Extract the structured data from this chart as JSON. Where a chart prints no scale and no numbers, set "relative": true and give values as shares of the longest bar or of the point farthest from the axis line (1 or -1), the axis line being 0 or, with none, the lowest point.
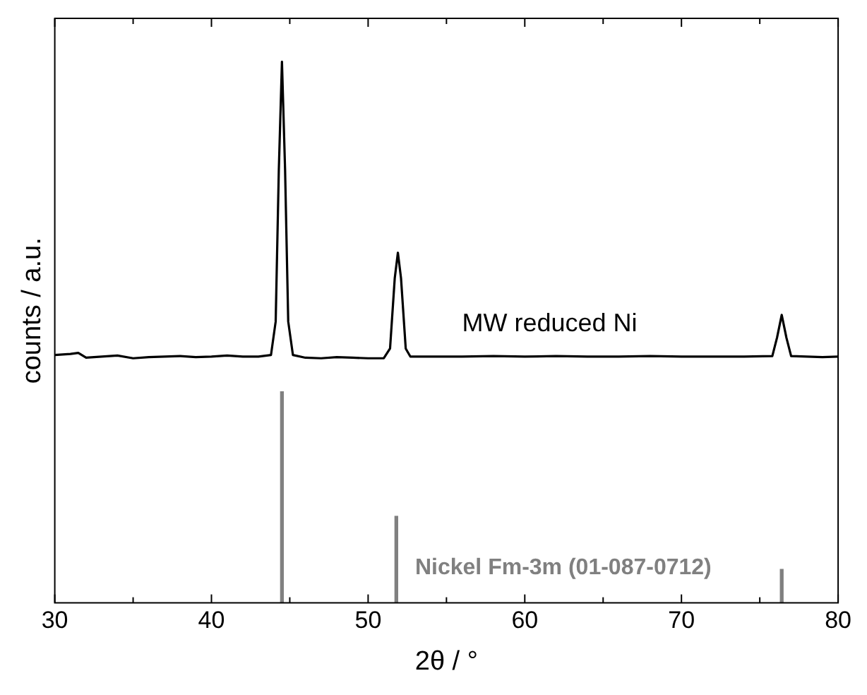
{
  "chart_data": {
    "type": "line",
    "xlabel": "2θ / °",
    "ylabel": "counts / a.u.",
    "relative": true,
    "xlim": [
      30,
      80
    ],
    "xticks": [
      30,
      {
        "value": 35,
        "label": null
      },
      40,
      {
        "value": 45,
        "label": null
      },
      50,
      {
        "value": 55,
        "label": null
      },
      60,
      {
        "value": 65,
        "label": null
      },
      70,
      {
        "value": 75,
        "label": null
      },
      80
    ],
    "grid": false,
    "legend": false,
    "marker": "none",
    "line_style": "solid",
    "series": [
      {
        "name": "MW reduced Ni",
        "color": "#000000",
        "x": [
          30,
          31,
          31.5,
          32,
          33,
          34,
          35,
          36,
          37,
          38,
          39,
          40,
          41,
          42,
          43,
          43.8,
          44.1,
          44.3,
          44.5,
          44.7,
          44.9,
          45.2,
          46,
          47,
          48,
          49,
          50,
          51,
          51.4,
          51.7,
          51.9,
          52.1,
          52.4,
          52.7,
          54,
          56,
          58,
          60,
          62,
          64,
          66,
          68,
          70,
          72,
          74,
          75.8,
          76.1,
          76.4,
          76.7,
          77,
          78,
          79,
          80
        ],
        "values": [
          0.458,
          0.46,
          0.462,
          0.453,
          0.455,
          0.457,
          0.452,
          0.454,
          0.455,
          0.456,
          0.454,
          0.455,
          0.457,
          0.455,
          0.455,
          0.458,
          0.52,
          0.8,
          1,
          0.8,
          0.52,
          0.458,
          0.453,
          0.452,
          0.454,
          0.453,
          0.452,
          0.452,
          0.47,
          0.6,
          0.647,
          0.6,
          0.47,
          0.455,
          0.455,
          0.455,
          0.456,
          0.455,
          0.456,
          0.455,
          0.455,
          0.456,
          0.455,
          0.455,
          0.455,
          0.456,
          0.49,
          0.532,
          0.49,
          0.456,
          0.455,
          0.454,
          0.455
        ]
      },
      {
        "name": "Nickel Fm-3m (01-087-0712)",
        "type": "bar",
        "color": "#808080",
        "x": [
          44.5,
          51.8,
          76.4
        ],
        "values": [
          0.39,
          0.16,
          0.062
        ]
      }
    ]
  }
}
